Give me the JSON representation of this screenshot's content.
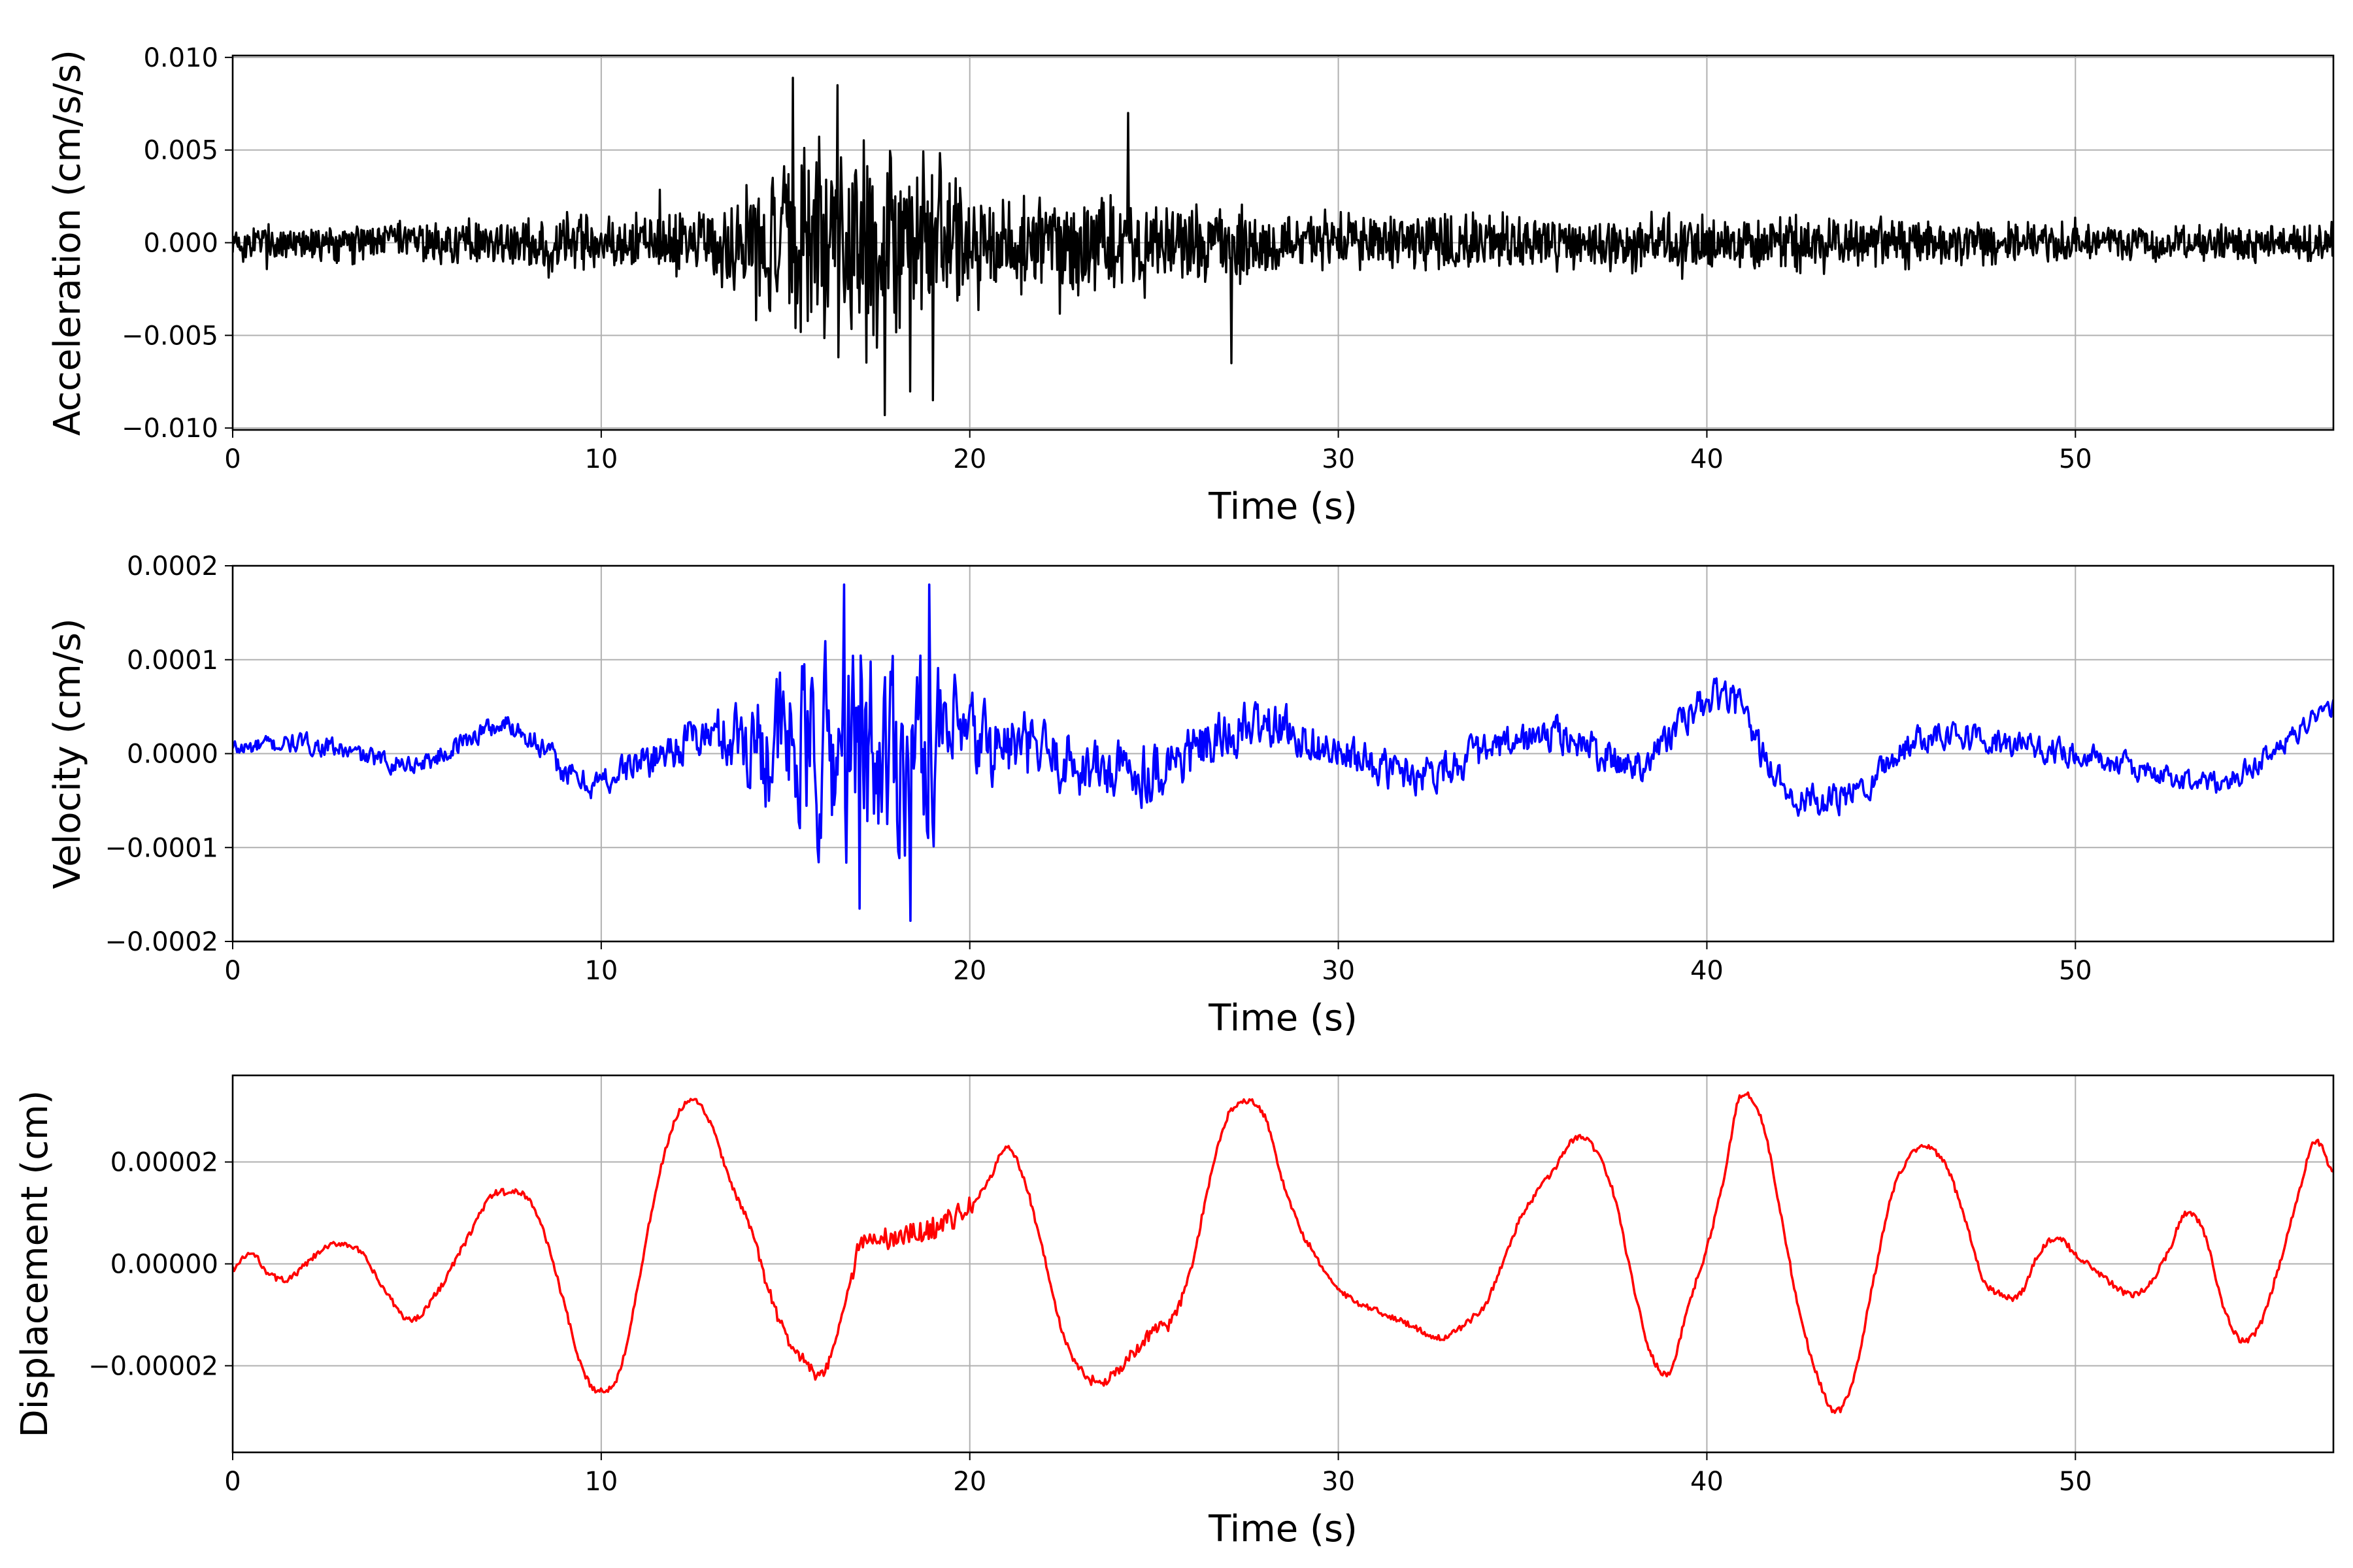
{
  "figure": {
    "background": "#ffffff",
    "grid_color": "#b0b0b0"
  },
  "chart_data": [
    {
      "type": "line",
      "series": [
        {
          "color": "#000000",
          "style": "noisy-dense",
          "values": "sampled-noisy"
        }
      ],
      "xlabel": "Time (s)",
      "ylabel": "Acceleration (cm/s/s)",
      "xlim": [
        0,
        57
      ],
      "ylim": [
        -0.0101,
        0.0101
      ],
      "x_ticks": [
        0,
        10,
        20,
        30,
        40,
        50
      ],
      "x_tick_labels": [
        "0",
        "10",
        "20",
        "30",
        "40",
        "50"
      ],
      "y_ticks": [
        -0.01,
        -0.005,
        0,
        0.005,
        0.01
      ],
      "y_tick_labels": [
        "−0.010",
        "−0.005",
        "0.000",
        "0.005",
        "0.010"
      ],
      "grid": true,
      "envelope": {
        "t": [
          0,
          5,
          10,
          13,
          14,
          15,
          16,
          17,
          18,
          19,
          20,
          21,
          22,
          23,
          24,
          25,
          27,
          30,
          40,
          50,
          57
        ],
        "amp": [
          0.0012,
          0.0013,
          0.0018,
          0.0022,
          0.0035,
          0.0055,
          0.0062,
          0.0068,
          0.0066,
          0.0055,
          0.004,
          0.0032,
          0.0032,
          0.0032,
          0.003,
          0.0022,
          0.0025,
          0.0018,
          0.0018,
          0.0012,
          0.0012
        ]
      },
      "peaks": [
        {
          "t": 15.2,
          "v": 0.0089
        },
        {
          "t": 17.7,
          "v": -0.0093
        },
        {
          "t": 16.4,
          "v": 0.0085
        },
        {
          "t": 19.0,
          "v": -0.0085
        },
        {
          "t": 24.3,
          "v": 0.007
        },
        {
          "t": 27.1,
          "v": -0.0065
        }
      ]
    },
    {
      "type": "line",
      "series": [
        {
          "color": "#0000ff",
          "style": "noisy"
        }
      ],
      "xlabel": "Time (s)",
      "ylabel": "Velocity (cm/s)",
      "xlim": [
        0,
        57
      ],
      "ylim": [
        -0.0002,
        0.0002
      ],
      "x_ticks": [
        0,
        10,
        20,
        30,
        40,
        50
      ],
      "x_tick_labels": [
        "0",
        "10",
        "20",
        "30",
        "40",
        "50"
      ],
      "y_ticks": [
        -0.0002,
        -0.0001,
        0,
        0.0001,
        0.0002
      ],
      "y_tick_labels": [
        "−0.0002",
        "−0.0001",
        "0.0000",
        "0.0001",
        "0.0002"
      ],
      "grid": true,
      "trend": {
        "t": [
          0,
          2,
          5,
          7.5,
          9.5,
          11,
          13,
          16,
          20,
          22,
          24,
          26,
          28,
          30,
          32,
          34,
          36,
          38,
          40.5,
          42,
          43.5,
          46,
          48,
          50,
          52,
          54,
          56,
          57
        ],
        "v": [
          5e-06,
          1e-05,
          -1e-05,
          3e-05,
          -3e-05,
          -1e-05,
          2e-05,
          0.0,
          1e-05,
          0.0,
          -2e-05,
          0.0,
          3e-05,
          0.0,
          -2e-05,
          0.0,
          2e-05,
          -1e-05,
          6e-05,
          -3e-05,
          -5e-05,
          2e-05,
          1e-05,
          0.0,
          -2e-05,
          -3e-05,
          2e-05,
          5e-05
        ]
      },
      "noise_envelope": {
        "t": [
          0,
          5,
          10,
          13,
          14,
          15,
          16,
          17,
          18,
          19,
          20,
          22,
          25,
          28,
          30,
          40,
          57
        ],
        "amp": [
          1.2e-05,
          1.2e-05,
          1.8e-05,
          3e-05,
          6e-05,
          0.0001,
          0.00012,
          0.00014,
          0.00013,
          0.0001,
          6e-05,
          4e-05,
          4e-05,
          3e-05,
          2.5e-05,
          2.2e-05,
          1.2e-05
        ]
      },
      "peaks": [
        {
          "t": 16.6,
          "v": 0.00018
        },
        {
          "t": 18.9,
          "v": 0.00018
        },
        {
          "t": 18.4,
          "v": -0.000178
        },
        {
          "t": 17.0,
          "v": -0.000165
        }
      ]
    },
    {
      "type": "line",
      "series": [
        {
          "color": "#ff0000",
          "style": "smooth"
        }
      ],
      "xlabel": "Time (s)",
      "ylabel": "Displacement (cm)",
      "xlim": [
        0,
        57
      ],
      "ylim": [
        -3.7e-05,
        3.7e-05
      ],
      "x_ticks": [
        0,
        10,
        20,
        30,
        40,
        50
      ],
      "x_tick_labels": [
        "0",
        "10",
        "20",
        "30",
        "40",
        "50"
      ],
      "y_ticks": [
        -2e-05,
        0,
        2e-05
      ],
      "y_tick_labels": [
        "−0.00002",
        "0.00000",
        "0.00002"
      ],
      "grid": true,
      "points": {
        "t": [
          0,
          0.5,
          1.0,
          1.5,
          2.0,
          2.5,
          3.0,
          3.5,
          4.0,
          4.8,
          5.5,
          6.3,
          7.0,
          7.5,
          8.0,
          8.5,
          9.0,
          9.5,
          10.0,
          10.5,
          11.0,
          11.5,
          12.0,
          12.5,
          13.0,
          13.5,
          14.0,
          14.5,
          15.0,
          15.5,
          16.0,
          16.5,
          17.0,
          18.0,
          19.0,
          20.0,
          20.5,
          21.0,
          21.5,
          22.0,
          22.5,
          23.0,
          23.5,
          24.0,
          24.5,
          25.0,
          25.5,
          26.0,
          26.5,
          27.0,
          27.5,
          28.0,
          28.5,
          29.0,
          30.0,
          31.0,
          32.0,
          32.5,
          33.0,
          34.0,
          34.5,
          35.0,
          35.8,
          36.5,
          37.0,
          37.5,
          38.0,
          38.5,
          39.0,
          39.5,
          40.0,
          40.5,
          40.9,
          41.5,
          42.0,
          42.5,
          43.0,
          43.5,
          44.0,
          44.5,
          45.0,
          45.5,
          46.0,
          46.5,
          47.0,
          47.5,
          48.0,
          48.5,
          49.0,
          49.5,
          50.0,
          50.5,
          51.0,
          51.5,
          52.0,
          52.5,
          53.0,
          53.5,
          54.0,
          54.5,
          55.0,
          55.5,
          56.0,
          56.5,
          57.0
        ],
        "v": [
          -1e-06,
          2e-06,
          -2e-06,
          -3e-06,
          0.0,
          3e-06,
          4e-06,
          2e-06,
          -4e-06,
          -1.1e-05,
          -6e-06,
          4e-06,
          1.3e-05,
          1.4e-05,
          1.3e-05,
          5e-06,
          -8e-06,
          -2.1e-05,
          -2.5e-05,
          -2.1e-05,
          -4e-06,
          1.5e-05,
          2.8e-05,
          3.2e-05,
          2.7e-05,
          1.6e-05,
          8e-06,
          -4e-06,
          -1.4e-05,
          -1.9e-05,
          -2.2e-05,
          -1.1e-05,
          3e-06,
          5e-06,
          7e-06,
          1.1e-05,
          1.6e-05,
          2.3e-05,
          1.6e-05,
          2e-06,
          -1.3e-05,
          -2.1e-05,
          -2.3e-05,
          -2.1e-05,
          -1.7e-05,
          -1.3e-05,
          -1.1e-05,
          -1e-06,
          1.6e-05,
          2.9e-05,
          3.2e-05,
          2.9e-05,
          1.6e-05,
          6e-06,
          -5e-06,
          -9e-06,
          -1.2e-05,
          -1.4e-05,
          -1.4e-05,
          -8e-06,
          1e-06,
          1e-05,
          1.8e-05,
          2.5e-05,
          2.2e-05,
          1.3e-05,
          -4e-06,
          -1.8e-05,
          -2.1e-05,
          -8e-06,
          3e-06,
          1.8e-05,
          3.3e-05,
          2.8e-05,
          1e-05,
          -9e-06,
          -2.2e-05,
          -2.9e-05,
          -2.2e-05,
          -4e-06,
          1.3e-05,
          2.1e-05,
          2.3e-05,
          1.9e-05,
          9e-06,
          -3e-06,
          -6e-06,
          -6e-06,
          2e-06,
          5e-06,
          2e-06,
          -1e-06,
          -4e-06,
          -6e-06,
          -4e-06,
          2e-06,
          1e-05,
          6e-06,
          -8e-06,
          -1.5e-05,
          -1.2e-05,
          -1e-06,
          1.2e-05,
          2.4e-05,
          1.8e-05
        ]
      }
    }
  ]
}
